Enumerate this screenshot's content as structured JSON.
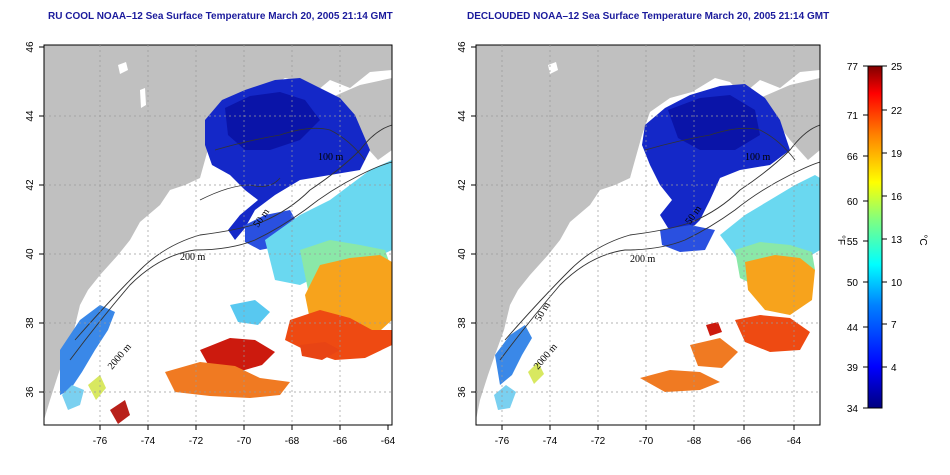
{
  "panels": [
    {
      "title": "RU COOL NOAA–12 Sea Surface Temperature March 20, 2005 21:14 GMT",
      "x_ticks": [
        "-76",
        "-74",
        "-72",
        "-70",
        "-68",
        "-66",
        "-64"
      ],
      "y_ticks": [
        "46",
        "44",
        "42",
        "40",
        "38",
        "36"
      ],
      "contour_labels": [
        "100 m",
        "50 m",
        "200 m",
        "2000 m"
      ]
    },
    {
      "title": "DECLOUDED NOAA–12 Sea Surface Temperature March 20, 2005 21:14 GMT",
      "x_ticks": [
        "-76",
        "-74",
        "-72",
        "-70",
        "-68",
        "-66",
        "-64"
      ],
      "y_ticks": [
        "46",
        "44",
        "42",
        "40",
        "38",
        "36"
      ],
      "contour_labels": [
        "100 m",
        "50 m",
        "200 m",
        "50 m",
        "2000 m"
      ]
    }
  ],
  "colorbar": {
    "fahrenheit_ticks": [
      "77",
      "71",
      "66",
      "60",
      "55",
      "50",
      "44",
      "39",
      "34"
    ],
    "celsius_ticks": [
      "25",
      "22",
      "19",
      "16",
      "13",
      "10",
      "7",
      "4"
    ],
    "fahrenheit_unit": "°F",
    "celsius_unit": "°C",
    "colors": [
      "#00007f",
      "#0000ff",
      "#007fff",
      "#00ffff",
      "#7fff7f",
      "#ffff00",
      "#ff7f00",
      "#ff0000",
      "#7f0000"
    ]
  },
  "colors": {
    "land": "#c0c0c0",
    "ocean_no_data": "#ffffff",
    "grid": "#9a9a9a",
    "title": "#1a1a9c"
  }
}
